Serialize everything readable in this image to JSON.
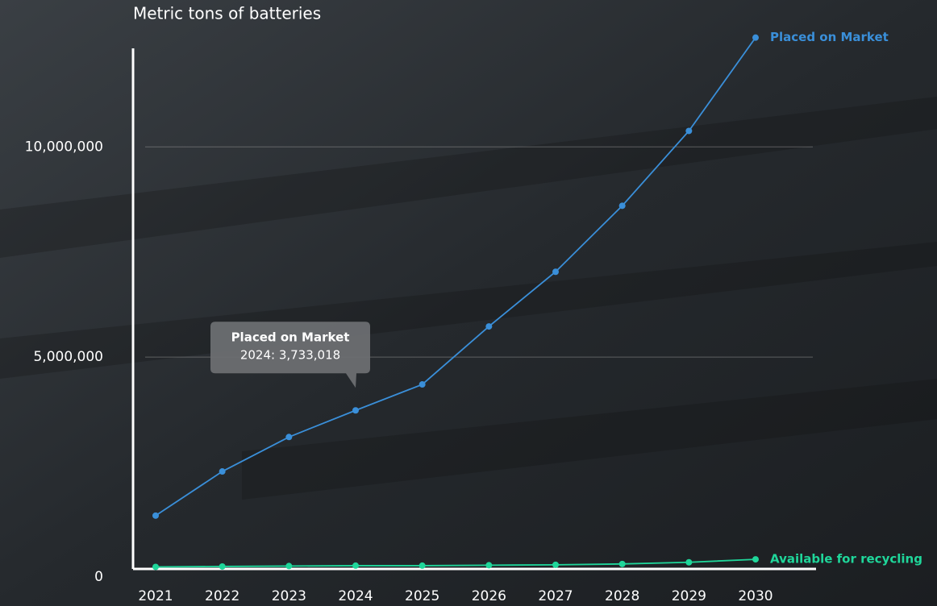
{
  "chart_data": {
    "type": "line",
    "y_axis_title": "Metric tons of batteries",
    "categories": [
      "2021",
      "2022",
      "2023",
      "2024",
      "2025",
      "2026",
      "2027",
      "2028",
      "2029",
      "2030"
    ],
    "series": [
      {
        "name": "Placed on Market",
        "color": "#3a8fd9",
        "values": [
          1230000,
          2280000,
          3100000,
          3733018,
          4350000,
          5730000,
          7030000,
          8600000,
          10380000,
          12600000
        ]
      },
      {
        "name": "Available for recycling",
        "color": "#1fd69a",
        "values": [
          10000,
          20000,
          30000,
          40000,
          40000,
          50000,
          60000,
          80000,
          120000,
          190000
        ]
      }
    ],
    "ylim": [
      0,
      12900000
    ],
    "yticks": [
      0,
      {
        "value": 5000000,
        "label": "5,000,000"
      },
      {
        "value": 10000000,
        "label": "10,000,000"
      }
    ],
    "grid": true,
    "tooltip": {
      "title": "Placed on Market",
      "text": "2024: 3,733,018"
    }
  }
}
